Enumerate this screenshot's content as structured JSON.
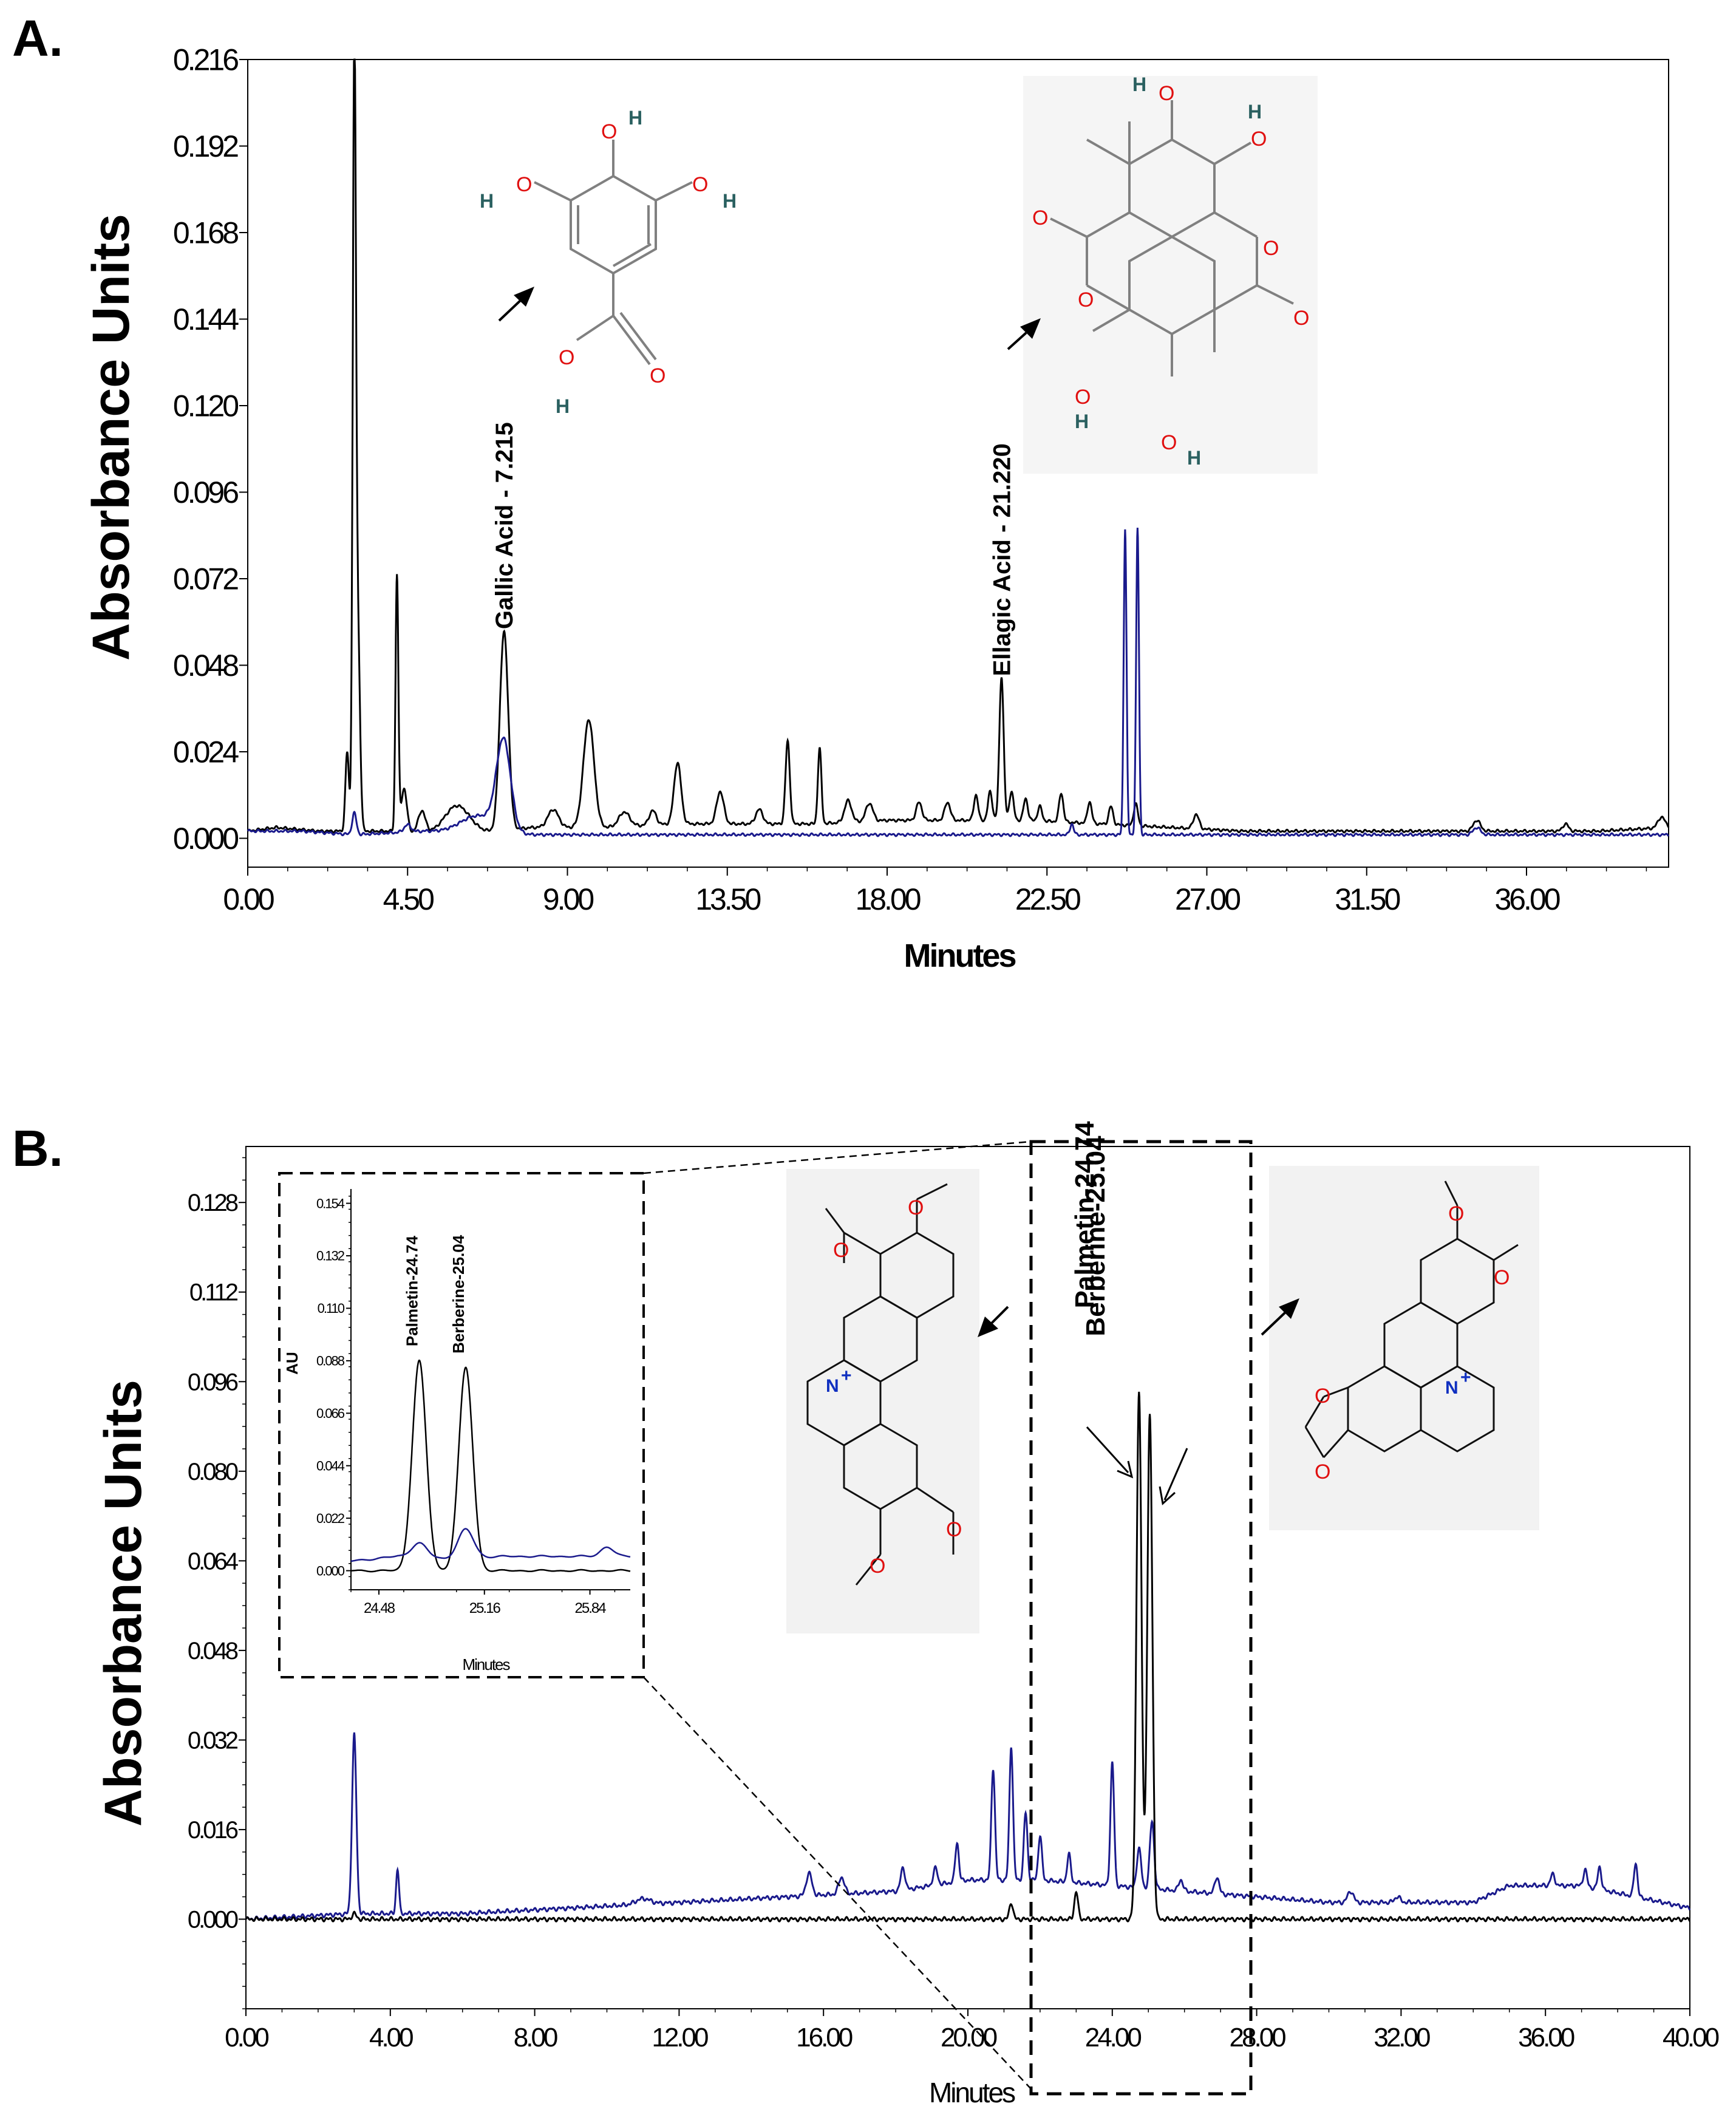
{
  "chart_data": [
    {
      "panel": "A.",
      "type": "line",
      "ylabel": "Absorbance Units",
      "xlabel": "Minutes",
      "xlim": [
        0,
        40
      ],
      "ylim": [
        -0.008,
        0.216
      ],
      "x_ticks": [
        "0.00",
        "4.50",
        "9.00",
        "13.50",
        "18.00",
        "22.50",
        "27.00",
        "31.50",
        "36.00"
      ],
      "x_tick_values": [
        0,
        4.5,
        9,
        13.5,
        18,
        22.5,
        27,
        31.5,
        36
      ],
      "y_ticks": [
        "0.216",
        "0.192",
        "0.168",
        "0.144",
        "0.120",
        "0.096",
        "0.072",
        "0.048",
        "0.024",
        "0.000"
      ],
      "y_tick_values": [
        0.216,
        0.192,
        0.168,
        0.144,
        0.12,
        0.096,
        0.072,
        0.048,
        0.024,
        0.0
      ],
      "colors": {
        "sample": "#000000",
        "standard": "#1a1a8c"
      },
      "annotations": [
        {
          "text": "Gallic Acid - 7.215",
          "x": 7.215,
          "y": 0.058
        },
        {
          "text": "Ellagic Acid - 21.220",
          "x": 21.22,
          "y": 0.045
        }
      ],
      "series": [
        {
          "color": "#000000",
          "baseline": [
            [
              0,
              0.002
            ],
            [
              0.8,
              0.003
            ],
            [
              2,
              0.002
            ],
            [
              4,
              0.002
            ],
            [
              6,
              0.001
            ],
            [
              8,
              0.003
            ],
            [
              10,
              0.003
            ],
            [
              12,
              0.004
            ],
            [
              14,
              0.004
            ],
            [
              16,
              0.004
            ],
            [
              18,
              0.005
            ],
            [
              20,
              0.005
            ],
            [
              22,
              0.005
            ],
            [
              24,
              0.004
            ],
            [
              26,
              0.003
            ],
            [
              28,
              0.002
            ],
            [
              30,
              0.002
            ],
            [
              32,
              0.002
            ],
            [
              34,
              0.002
            ],
            [
              36,
              0.002
            ],
            [
              38,
              0.002
            ],
            [
              40,
              0.003
            ]
          ],
          "peaks": [
            {
              "x": 2.8,
              "h": 0.022,
              "w": 0.05
            },
            {
              "x": 3.0,
              "h": 0.208,
              "w": 0.045
            },
            {
              "x": 3.1,
              "h": 0.055,
              "w": 0.06
            },
            {
              "x": 4.2,
              "h": 0.071,
              "w": 0.04
            },
            {
              "x": 4.4,
              "h": 0.012,
              "w": 0.08
            },
            {
              "x": 4.9,
              "h": 0.006,
              "w": 0.1
            },
            {
              "x": 5.9,
              "h": 0.008,
              "w": 0.35
            },
            {
              "x": 7.215,
              "h": 0.055,
              "w": 0.12
            },
            {
              "x": 8.6,
              "h": 0.005,
              "w": 0.15
            },
            {
              "x": 9.6,
              "h": 0.03,
              "w": 0.15
            },
            {
              "x": 10.6,
              "h": 0.004,
              "w": 0.15
            },
            {
              "x": 11.4,
              "h": 0.004,
              "w": 0.1
            },
            {
              "x": 12.1,
              "h": 0.017,
              "w": 0.1
            },
            {
              "x": 13.3,
              "h": 0.009,
              "w": 0.1
            },
            {
              "x": 14.4,
              "h": 0.004,
              "w": 0.1
            },
            {
              "x": 15.2,
              "h": 0.023,
              "w": 0.06
            },
            {
              "x": 16.1,
              "h": 0.021,
              "w": 0.05
            },
            {
              "x": 16.9,
              "h": 0.006,
              "w": 0.1
            },
            {
              "x": 17.5,
              "h": 0.005,
              "w": 0.1
            },
            {
              "x": 18.9,
              "h": 0.005,
              "w": 0.08
            },
            {
              "x": 19.7,
              "h": 0.005,
              "w": 0.08
            },
            {
              "x": 20.5,
              "h": 0.007,
              "w": 0.06
            },
            {
              "x": 20.9,
              "h": 0.008,
              "w": 0.06
            },
            {
              "x": 21.22,
              "h": 0.04,
              "w": 0.06
            },
            {
              "x": 21.5,
              "h": 0.008,
              "w": 0.06
            },
            {
              "x": 21.9,
              "h": 0.006,
              "w": 0.06
            },
            {
              "x": 22.3,
              "h": 0.004,
              "w": 0.06
            },
            {
              "x": 22.9,
              "h": 0.008,
              "w": 0.06
            },
            {
              "x": 23.7,
              "h": 0.006,
              "w": 0.06
            },
            {
              "x": 24.3,
              "h": 0.005,
              "w": 0.06
            },
            {
              "x": 25.0,
              "h": 0.006,
              "w": 0.06
            },
            {
              "x": 26.7,
              "h": 0.004,
              "w": 0.08
            },
            {
              "x": 34.6,
              "h": 0.003,
              "w": 0.1
            },
            {
              "x": 37.1,
              "h": 0.002,
              "w": 0.08
            },
            {
              "x": 39.8,
              "h": 0.003,
              "w": 0.1
            }
          ]
        },
        {
          "color": "#1a1a8c",
          "baseline": [
            [
              0,
              0.002
            ],
            [
              1.5,
              0.002
            ],
            [
              3,
              0.001
            ],
            [
              5,
              0.002
            ],
            [
              7,
              0.001
            ],
            [
              10,
              0.001
            ],
            [
              15,
              0.001
            ],
            [
              20,
              0.001
            ],
            [
              25,
              0.001
            ],
            [
              30,
              0.001
            ],
            [
              35,
              0.001
            ],
            [
              40,
              0.001
            ]
          ],
          "peaks": [
            {
              "x": 3.0,
              "h": 0.006,
              "w": 0.06
            },
            {
              "x": 4.5,
              "h": 0.002,
              "w": 0.1
            },
            {
              "x": 6.5,
              "h": 0.005,
              "w": 0.5
            },
            {
              "x": 7.2,
              "h": 0.025,
              "w": 0.2
            },
            {
              "x": 23.2,
              "h": 0.003,
              "w": 0.05
            },
            {
              "x": 24.7,
              "h": 0.085,
              "w": 0.04
            },
            {
              "x": 25.05,
              "h": 0.085,
              "w": 0.04
            },
            {
              "x": 34.6,
              "h": 0.002,
              "w": 0.1
            }
          ]
        }
      ]
    },
    {
      "panel": "B.",
      "type": "line",
      "ylabel": "Absorbance Units",
      "xlabel": "Minutes",
      "xlim": [
        0,
        40
      ],
      "ylim": [
        -0.016,
        0.138
      ],
      "x_ticks": [
        "0.00",
        "4.00",
        "8.00",
        "12.00",
        "16.00",
        "20.00",
        "24.00",
        "28.00",
        "32.00",
        "36.00",
        "40.00"
      ],
      "x_tick_values": [
        0,
        4,
        8,
        12,
        16,
        20,
        24,
        28,
        32,
        36,
        40
      ],
      "y_ticks": [
        "0.128",
        "0.112",
        "0.096",
        "0.080",
        "0.064",
        "0.048",
        "0.032",
        "0.016",
        "0.000"
      ],
      "y_tick_values": [
        0.128,
        0.112,
        0.096,
        0.08,
        0.064,
        0.048,
        0.032,
        0.016,
        0.0
      ],
      "colors": {
        "sample": "#1a1a8c",
        "standard": "#000000"
      },
      "annotations": [
        {
          "text": "Palmetin-24.74",
          "x": 24.74,
          "y": 0.095
        },
        {
          "text": "Berberine-25.04",
          "x": 25.04,
          "y": 0.09
        }
      ],
      "series": [
        {
          "color": "#1a1a8c",
          "baseline": [
            [
              0,
              0.0
            ],
            [
              3,
              0.001
            ],
            [
              6,
              0.001
            ],
            [
              9,
              0.002
            ],
            [
              12,
              0.003
            ],
            [
              15,
              0.004
            ],
            [
              18,
              0.005
            ],
            [
              20,
              0.007
            ],
            [
              22,
              0.007
            ],
            [
              24,
              0.006
            ],
            [
              26,
              0.005
            ],
            [
              28,
              0.004
            ],
            [
              30,
              0.003
            ],
            [
              32,
              0.003
            ],
            [
              34,
              0.003
            ],
            [
              35,
              0.006
            ],
            [
              37,
              0.006
            ],
            [
              38.5,
              0.004
            ],
            [
              40,
              0.002
            ]
          ],
          "peaks": [
            {
              "x": 3.0,
              "h": 0.032,
              "w": 0.06
            },
            {
              "x": 4.2,
              "h": 0.008,
              "w": 0.04
            },
            {
              "x": 11,
              "h": 0.001,
              "w": 0.2
            },
            {
              "x": 15.6,
              "h": 0.004,
              "w": 0.08
            },
            {
              "x": 16.5,
              "h": 0.003,
              "w": 0.08
            },
            {
              "x": 18.2,
              "h": 0.004,
              "w": 0.06
            },
            {
              "x": 19.1,
              "h": 0.003,
              "w": 0.06
            },
            {
              "x": 19.7,
              "h": 0.007,
              "w": 0.05
            },
            {
              "x": 20.7,
              "h": 0.02,
              "w": 0.05
            },
            {
              "x": 21.2,
              "h": 0.024,
              "w": 0.05
            },
            {
              "x": 21.6,
              "h": 0.012,
              "w": 0.05
            },
            {
              "x": 22.0,
              "h": 0.008,
              "w": 0.05
            },
            {
              "x": 22.8,
              "h": 0.005,
              "w": 0.05
            },
            {
              "x": 24.0,
              "h": 0.022,
              "w": 0.05
            },
            {
              "x": 24.74,
              "h": 0.007,
              "w": 0.06
            },
            {
              "x": 25.1,
              "h": 0.012,
              "w": 0.06
            },
            {
              "x": 25.9,
              "h": 0.002,
              "w": 0.06
            },
            {
              "x": 26.9,
              "h": 0.003,
              "w": 0.06
            },
            {
              "x": 30.6,
              "h": 0.002,
              "w": 0.08
            },
            {
              "x": 31.9,
              "h": 0.001,
              "w": 0.08
            },
            {
              "x": 36.2,
              "h": 0.002,
              "w": 0.06
            },
            {
              "x": 37.1,
              "h": 0.003,
              "w": 0.05
            },
            {
              "x": 37.5,
              "h": 0.004,
              "w": 0.05
            },
            {
              "x": 38.5,
              "h": 0.006,
              "w": 0.05
            }
          ]
        },
        {
          "color": "#000000",
          "baseline": [
            [
              0,
              0.0
            ],
            [
              5,
              0.0
            ],
            [
              10,
              0.0
            ],
            [
              20,
              0.0
            ],
            [
              30,
              0.0
            ],
            [
              40,
              0.0
            ]
          ],
          "peaks": [
            {
              "x": 3.0,
              "h": 0.001,
              "w": 0.06
            },
            {
              "x": 21.2,
              "h": 0.003,
              "w": 0.05
            },
            {
              "x": 23.0,
              "h": 0.005,
              "w": 0.05
            },
            {
              "x": 24.74,
              "h": 0.094,
              "w": 0.07
            },
            {
              "x": 25.04,
              "h": 0.09,
              "w": 0.07
            }
          ]
        }
      ],
      "inset": {
        "ylabel": "AU",
        "xlabel": "Minutes",
        "xlim": [
          24.3,
          26.1
        ],
        "ylim": [
          -0.008,
          0.16
        ],
        "x_ticks": [
          "24.48",
          "25.16",
          "25.84"
        ],
        "x_tick_values": [
          24.48,
          25.16,
          25.84
        ],
        "y_ticks": [
          "0.154",
          "0.132",
          "0.110",
          "0.088",
          "0.066",
          "0.044",
          "0.022",
          "0.000"
        ],
        "y_tick_values": [
          0.154,
          0.132,
          0.11,
          0.088,
          0.066,
          0.044,
          0.022,
          0.0
        ],
        "annotations": [
          {
            "text": "Palmetin-24.74",
            "x": 24.74,
            "y": 0.092
          },
          {
            "text": "Berberine-25.04",
            "x": 25.04,
            "y": 0.089
          }
        ],
        "series": [
          {
            "color": "#000000",
            "baseline": [
              [
                24.3,
                0.0
              ],
              [
                26.1,
                0.0
              ]
            ],
            "peaks": [
              {
                "x": 24.74,
                "h": 0.088,
                "w": 0.045
              },
              {
                "x": 25.04,
                "h": 0.085,
                "w": 0.045
              }
            ]
          },
          {
            "color": "#1a1a8c",
            "baseline": [
              [
                24.3,
                0.004
              ],
              [
                24.6,
                0.006
              ],
              [
                24.9,
                0.005
              ],
              [
                25.3,
                0.006
              ],
              [
                25.7,
                0.006
              ],
              [
                26.1,
                0.006
              ]
            ],
            "peaks": [
              {
                "x": 24.74,
                "h": 0.006,
                "w": 0.05
              },
              {
                "x": 25.04,
                "h": 0.012,
                "w": 0.05
              },
              {
                "x": 25.95,
                "h": 0.004,
                "w": 0.04
              }
            ]
          }
        ]
      }
    }
  ]
}
